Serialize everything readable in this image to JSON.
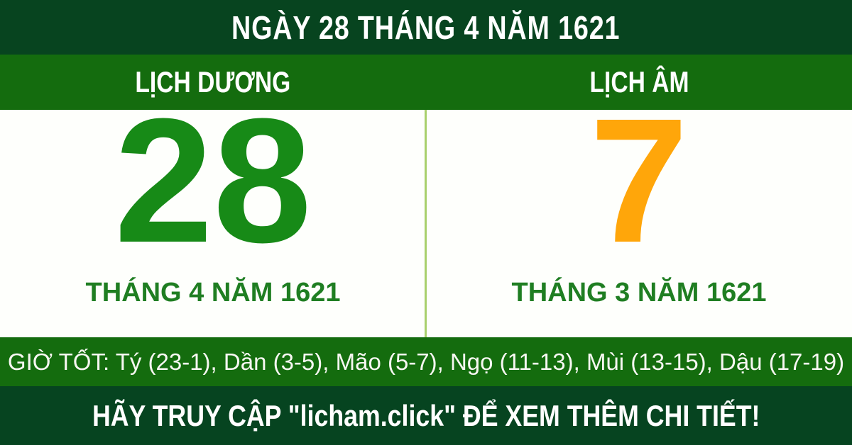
{
  "banner": {
    "title": "NGÀY 28 THÁNG 4 NĂM 1621"
  },
  "columns": {
    "solar": {
      "header": "LỊCH DƯƠNG",
      "day": "28",
      "month_year": "THÁNG 4 NĂM 1621"
    },
    "lunar": {
      "header": "LỊCH ÂM",
      "day": "7",
      "month_year": "THÁNG 3 NĂM 1621"
    }
  },
  "good_hours": {
    "text": "GIỜ TỐT: Tý (23-1), Dần (3-5), Mão (5-7), Ngọ (11-13), Mùi (13-15), Dậu (17-19)"
  },
  "footer": {
    "text": "HÃY TRUY CẬP \"licham.click\" ĐỂ XEM THÊM CHI TIẾT!"
  },
  "colors": {
    "dark_green": "#07441f",
    "bright_green": "#146c0e",
    "solar_day_green": "#178a17",
    "lunar_day_orange": "#ffa60a",
    "month_label_green": "#1f7e22",
    "divider_light_green": "#a8d06c",
    "text_white": "#ffffff"
  }
}
